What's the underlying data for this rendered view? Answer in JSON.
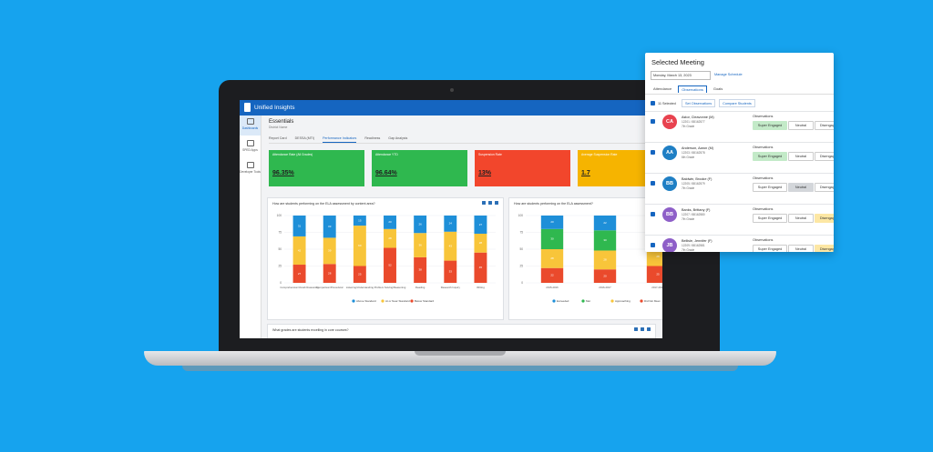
{
  "app": {
    "title": "Unified Insights",
    "sidebar": [
      "Dashboards",
      "SPED Apps",
      "Developer Tools"
    ]
  },
  "page": {
    "title": "Essentials",
    "subtitle": "District Name",
    "tabs": [
      "Report Card",
      "DESSA (MTI)",
      "Performance Indicators",
      "Readiness",
      "Gap Analysis"
    ],
    "active_tab": 2
  },
  "kpis": [
    {
      "label": "Attendance Rate (All Grades)",
      "value": "96.35%",
      "color": "#2fb84f"
    },
    {
      "label": "Attendance YTD",
      "value": "96.64%",
      "color": "#2fb84f"
    },
    {
      "label": "Suspension Rate",
      "value": "13%",
      "color": "#f2462c"
    },
    {
      "label": "Average Suspension Rate",
      "value": "1.7",
      "color": "#f6b400"
    }
  ],
  "chart_data": [
    {
      "type": "bar",
      "stacked": true,
      "title": "How are students performing on the ELA assessment by content area?",
      "categories": [
        "Comprehension/Vocab Reasoning",
        "Comparison/Procedural",
        "Listening/Understanding",
        "Problem Solving/Reasoning",
        "Reading",
        "Research Inquiry",
        "Writing"
      ],
      "series": [
        {
          "name": "Above Standard",
          "color": "#1e8fd8",
          "values": [
            31,
            33,
            15,
            20,
            26,
            24,
            27
          ]
        },
        {
          "name": "At or Near Standard",
          "color": "#f8c53a",
          "values": [
            42,
            39,
            60,
            28,
            36,
            43,
            28
          ]
        },
        {
          "name": "Below Standard",
          "color": "#ea4a2c",
          "values": [
            27,
            28,
            25,
            52,
            38,
            33,
            45
          ]
        }
      ],
      "ylim": [
        0,
        100
      ],
      "yticks": [
        0,
        25,
        50,
        75,
        100
      ],
      "grid": true,
      "legend": "bottom"
    },
    {
      "type": "bar",
      "stacked": true,
      "title": "How are students performing on the ELA assessment?",
      "categories": [
        "2015-2016",
        "2016-2017",
        "2017-2018"
      ],
      "series": [
        {
          "name": "Exceeded",
          "color": "#1e8fd8",
          "values": [
            20,
            22,
            22
          ]
        },
        {
          "name": "Met",
          "color": "#2fb84f",
          "values": [
            30,
            30,
            25
          ]
        },
        {
          "name": "Approaching",
          "color": "#f8c53a",
          "values": [
            28,
            28,
            28
          ]
        },
        {
          "name": "Did Not Meet",
          "color": "#ea4a2c",
          "values": [
            22,
            20,
            25
          ]
        }
      ],
      "ylim": [
        0,
        100
      ],
      "yticks": [
        0,
        25,
        50,
        75,
        100
      ],
      "grid": true,
      "legend": "bottom"
    }
  ],
  "third_panel": {
    "title": "What grades are students excelling in core courses?"
  },
  "meeting": {
    "title": "Selected Meeting",
    "date": "Monday, March 13, 2023",
    "link": "Manage Schedule",
    "tabs": [
      "Attendance",
      "Observations",
      "Goals"
    ],
    "active_tab": 1,
    "selected": "11 Selected",
    "buttons": [
      "Set Observations",
      "Compare Students"
    ],
    "observations_label": "Observations",
    "observation_options": [
      "Super Engaged",
      "Neutral",
      "Disengaged"
    ],
    "option_colors": [
      "#c3eac8",
      "#d3d6da",
      "#fde7a4"
    ],
    "students": [
      {
        "initials": "CA",
        "name": "Astor, Cleavonne (M)",
        "id": "12201 / 88162577",
        "grade": "7th Grade",
        "color": "#e8424f",
        "observation": 0
      },
      {
        "initials": "AA",
        "name": "Anderson, Aaron (M)",
        "id": "12203 / 88162578",
        "grade": "6th Grade",
        "color": "#1f7fc4",
        "observation": 0
      },
      {
        "initials": "BB",
        "name": "Baldwin, Brooke (F)",
        "id": "12205 / 88162579",
        "grade": "7th Grade",
        "color": "#1f7fc4",
        "observation": 1
      },
      {
        "initials": "BB",
        "name": "Banks, Brittany (F)",
        "id": "12207 / 88162580",
        "grade": "7th Grade",
        "color": "#8e5fc8",
        "observation": 2
      },
      {
        "initials": "JB",
        "name": "Bellisle, Jennifer (F)",
        "id": "12209 / 88162581",
        "grade": "7th Grade",
        "color": "#8e5fc8",
        "observation": 2
      }
    ]
  },
  "third_icons": true
}
